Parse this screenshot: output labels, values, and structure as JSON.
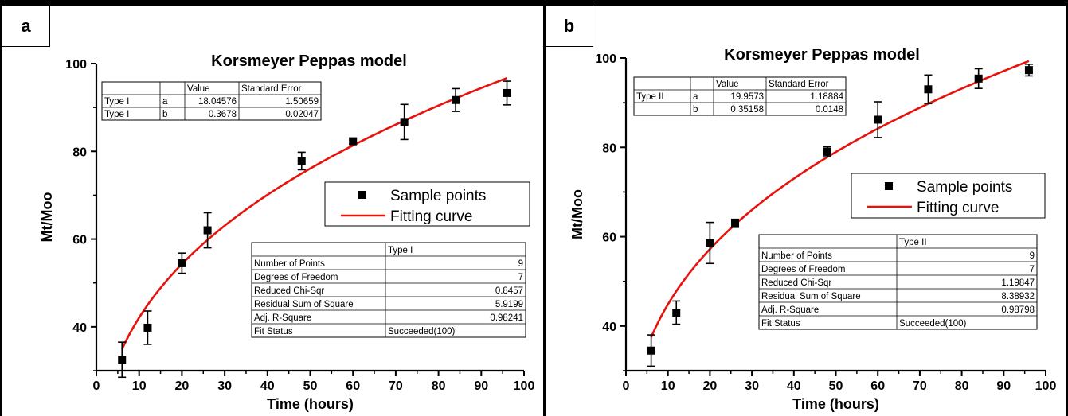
{
  "chart_data": [
    {
      "type": "scatter",
      "panel": "a",
      "title": "Korsmeyer Peppas model",
      "xlabel": "Time (hours)",
      "ylabel": "Mt/Moo",
      "xlim": [
        0,
        100
      ],
      "ylim": [
        30,
        100
      ],
      "xticks": [
        0,
        10,
        20,
        30,
        40,
        50,
        60,
        70,
        80,
        90,
        100
      ],
      "yticks": [
        40,
        60,
        80,
        100
      ],
      "legend": [
        "Sample points",
        "Fitting curve"
      ],
      "legend_position": "center-right",
      "series": [
        {
          "name": "Sample points",
          "x": [
            6,
            12,
            20,
            26,
            48,
            60,
            72,
            84,
            96
          ],
          "y": [
            32.5,
            39.8,
            54.5,
            62.0,
            77.8,
            82.3,
            86.7,
            91.7,
            93.3
          ],
          "error": [
            4.0,
            3.8,
            2.3,
            4.0,
            2.0,
            0.7,
            4.0,
            2.6,
            2.7
          ],
          "marker": "square",
          "color": "#000000"
        },
        {
          "name": "Fitting curve",
          "fit": "y = a * x^b",
          "a": 18.04576,
          "b": 0.3678,
          "x_range": [
            6,
            96
          ],
          "color": "#e8120c"
        }
      ],
      "param_table": {
        "headers": [
          "",
          "",
          "Value",
          "Standard Error"
        ],
        "rows": [
          [
            "Type I",
            "a",
            "18.04576",
            "1.50659"
          ],
          [
            "Type I",
            "b",
            "0.3678",
            "0.02047"
          ]
        ]
      },
      "stats_table": {
        "header": "Type I",
        "rows": [
          [
            "Number of Points",
            "9"
          ],
          [
            "Degrees of Freedom",
            "7"
          ],
          [
            "Reduced Chi-Sqr",
            "0.8457"
          ],
          [
            "Residual Sum of Square",
            "5.9199"
          ],
          [
            "Adj. R-Square",
            "0.98241"
          ],
          [
            "Fit Status",
            "Succeeded(100)"
          ]
        ]
      }
    },
    {
      "type": "scatter",
      "panel": "b",
      "title": "Korsmeyer Peppas model",
      "xlabel": "Time (hours)",
      "ylabel": "Mt/Moo",
      "xlim": [
        0,
        100
      ],
      "ylim": [
        30,
        100
      ],
      "xticks": [
        0,
        10,
        20,
        30,
        40,
        50,
        60,
        70,
        80,
        90,
        100
      ],
      "yticks": [
        40,
        60,
        80,
        100
      ],
      "legend": [
        "Sample points",
        "Fitting curve"
      ],
      "legend_position": "center-right",
      "series": [
        {
          "name": "Sample points",
          "x": [
            6,
            12,
            20,
            26,
            48,
            60,
            72,
            84,
            96
          ],
          "y": [
            34.5,
            43.0,
            58.6,
            63.0,
            79.0,
            86.2,
            93.0,
            95.4,
            97.3
          ],
          "error": [
            3.5,
            2.6,
            4.6,
            0.9,
            1.1,
            4.0,
            3.2,
            2.2,
            1.3
          ],
          "marker": "square",
          "color": "#000000"
        },
        {
          "name": "Fitting curve",
          "fit": "y = a * x^b",
          "a": 19.9573,
          "b": 0.35158,
          "x_range": [
            6,
            96
          ],
          "color": "#e8120c"
        }
      ],
      "param_table": {
        "headers": [
          "",
          "",
          "Value",
          "Standard Error"
        ],
        "rows": [
          [
            "Type II",
            "a",
            "19.9573",
            "1.18884"
          ],
          [
            "",
            "b",
            "0.35158",
            "0.0148"
          ]
        ]
      },
      "stats_table": {
        "header": "Type II",
        "rows": [
          [
            "Number of Points",
            "9"
          ],
          [
            "Degrees of Freedom",
            "7"
          ],
          [
            "Reduced Chi-Sqr",
            "1.19847"
          ],
          [
            "Residual Sum of Square",
            "8.38932"
          ],
          [
            "Adj. R-Square",
            "0.98798"
          ],
          [
            "Fit Status",
            "Succeeded(100)"
          ]
        ]
      }
    }
  ],
  "panels": [
    {
      "letter": "a"
    },
    {
      "letter": "b"
    }
  ]
}
